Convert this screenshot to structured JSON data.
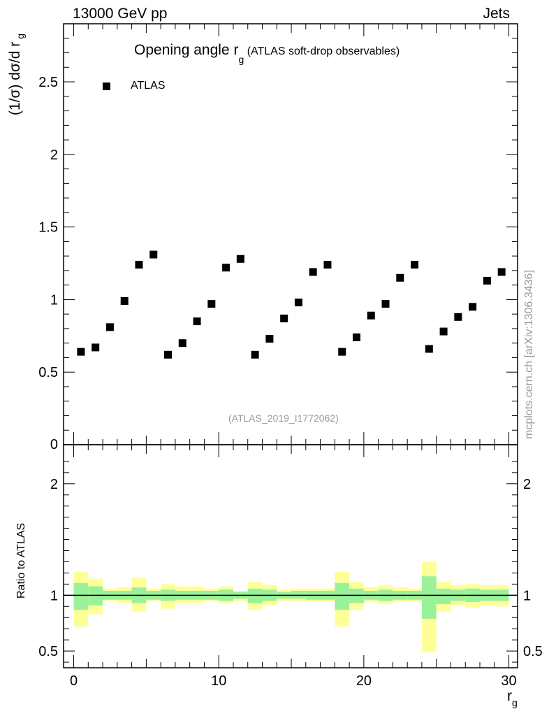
{
  "header": {
    "left": "13000 GeV pp",
    "right": "Jets"
  },
  "side_label": "mcplots.cern.ch [arXiv:1306.3436]",
  "analysis_tag": "(ATLAS_2019_I1772062)",
  "chart_data": [
    {
      "type": "scatter",
      "title_main": "Opening angle r",
      "title_sub": "g",
      "title_suffix": "(ATLAS soft-drop observables)",
      "ylabel_main": "(1/σ) dσ/d r",
      "ylabel_sub": "g",
      "ylim": [
        0,
        2.9
      ],
      "xlim": [
        -0.7,
        30.6
      ],
      "yticks": [
        0.5,
        1,
        1.5,
        2,
        2.5
      ],
      "ytick_labels": [
        "0.5",
        "1",
        "1.5",
        "2",
        "2.5"
      ],
      "y0_label": "0",
      "legend": "top-left",
      "series": [
        {
          "name": "ATLAS",
          "color": "#000000",
          "x": [
            0.5,
            1.5,
            2.5,
            3.5,
            4.5,
            5.5,
            6.5,
            7.5,
            8.5,
            9.5,
            10.5,
            11.5,
            12.5,
            13.5,
            14.5,
            15.5,
            16.5,
            17.5,
            18.5,
            19.5,
            20.5,
            21.5,
            22.5,
            23.5,
            24.5,
            25.5,
            26.5,
            27.5,
            28.5,
            29.5
          ],
          "y": [
            0.64,
            0.67,
            0.81,
            0.99,
            1.24,
            1.31,
            0.62,
            0.7,
            0.85,
            0.97,
            1.22,
            1.28,
            0.62,
            0.73,
            0.87,
            0.98,
            1.19,
            1.24,
            0.64,
            0.74,
            0.89,
            0.97,
            1.15,
            1.24,
            0.66,
            0.78,
            0.88,
            0.95,
            1.13,
            1.19
          ]
        }
      ]
    },
    {
      "type": "area",
      "ylabel": "Ratio to ATLAS",
      "xlabel_main": "r",
      "xlabel_sub": "g",
      "ylim": [
        0.35,
        2.35
      ],
      "xlim": [
        -0.7,
        30.6
      ],
      "yticks": [
        0.5,
        1,
        2
      ],
      "ytick_labels": [
        "0.5",
        "1",
        "2"
      ],
      "xticks": [
        0,
        10,
        20,
        30
      ],
      "xtick_labels": [
        "0",
        "10",
        "20",
        "30"
      ],
      "reference_line": 1,
      "bands": {
        "outer_color": "#ffff99",
        "inner_color": "#99f299",
        "bins_lo": [
          0,
          1,
          2,
          3,
          4,
          5,
          6,
          7,
          8,
          9,
          10,
          11,
          12,
          13,
          14,
          15,
          16,
          17,
          18,
          19,
          20,
          21,
          22,
          23,
          24,
          25,
          26,
          27,
          28,
          29
        ],
        "bins_hi": [
          1,
          2,
          3,
          4,
          5,
          6,
          7,
          8,
          9,
          10,
          11,
          12,
          13,
          14,
          15,
          16,
          17,
          18,
          19,
          20,
          21,
          22,
          23,
          24,
          25,
          26,
          27,
          28,
          29,
          30
        ],
        "outer_lo": [
          0.72,
          0.83,
          0.95,
          0.93,
          0.85,
          0.95,
          0.88,
          0.93,
          0.93,
          0.95,
          0.93,
          0.95,
          0.87,
          0.91,
          0.95,
          0.95,
          0.94,
          0.94,
          0.72,
          0.87,
          0.94,
          0.92,
          0.94,
          0.94,
          0.49,
          0.85,
          0.91,
          0.89,
          0.91,
          0.9
        ],
        "outer_hi": [
          1.21,
          1.15,
          1.06,
          1.07,
          1.16,
          1.06,
          1.1,
          1.08,
          1.08,
          1.06,
          1.08,
          1.04,
          1.12,
          1.09,
          1.05,
          1.06,
          1.06,
          1.06,
          1.21,
          1.12,
          1.07,
          1.09,
          1.07,
          1.06,
          1.3,
          1.12,
          1.09,
          1.1,
          1.09,
          1.09
        ],
        "inner_lo": [
          0.87,
          0.91,
          0.96,
          0.96,
          0.93,
          0.96,
          0.95,
          0.96,
          0.96,
          0.96,
          0.95,
          0.97,
          0.93,
          0.95,
          0.97,
          0.97,
          0.96,
          0.96,
          0.87,
          0.93,
          0.96,
          0.95,
          0.96,
          0.96,
          0.79,
          0.92,
          0.95,
          0.94,
          0.95,
          0.95
        ],
        "inner_hi": [
          1.11,
          1.08,
          1.04,
          1.04,
          1.07,
          1.04,
          1.05,
          1.04,
          1.04,
          1.04,
          1.05,
          1.03,
          1.06,
          1.05,
          1.03,
          1.04,
          1.04,
          1.04,
          1.11,
          1.06,
          1.04,
          1.05,
          1.04,
          1.04,
          1.17,
          1.06,
          1.05,
          1.06,
          1.05,
          1.05
        ]
      }
    }
  ]
}
